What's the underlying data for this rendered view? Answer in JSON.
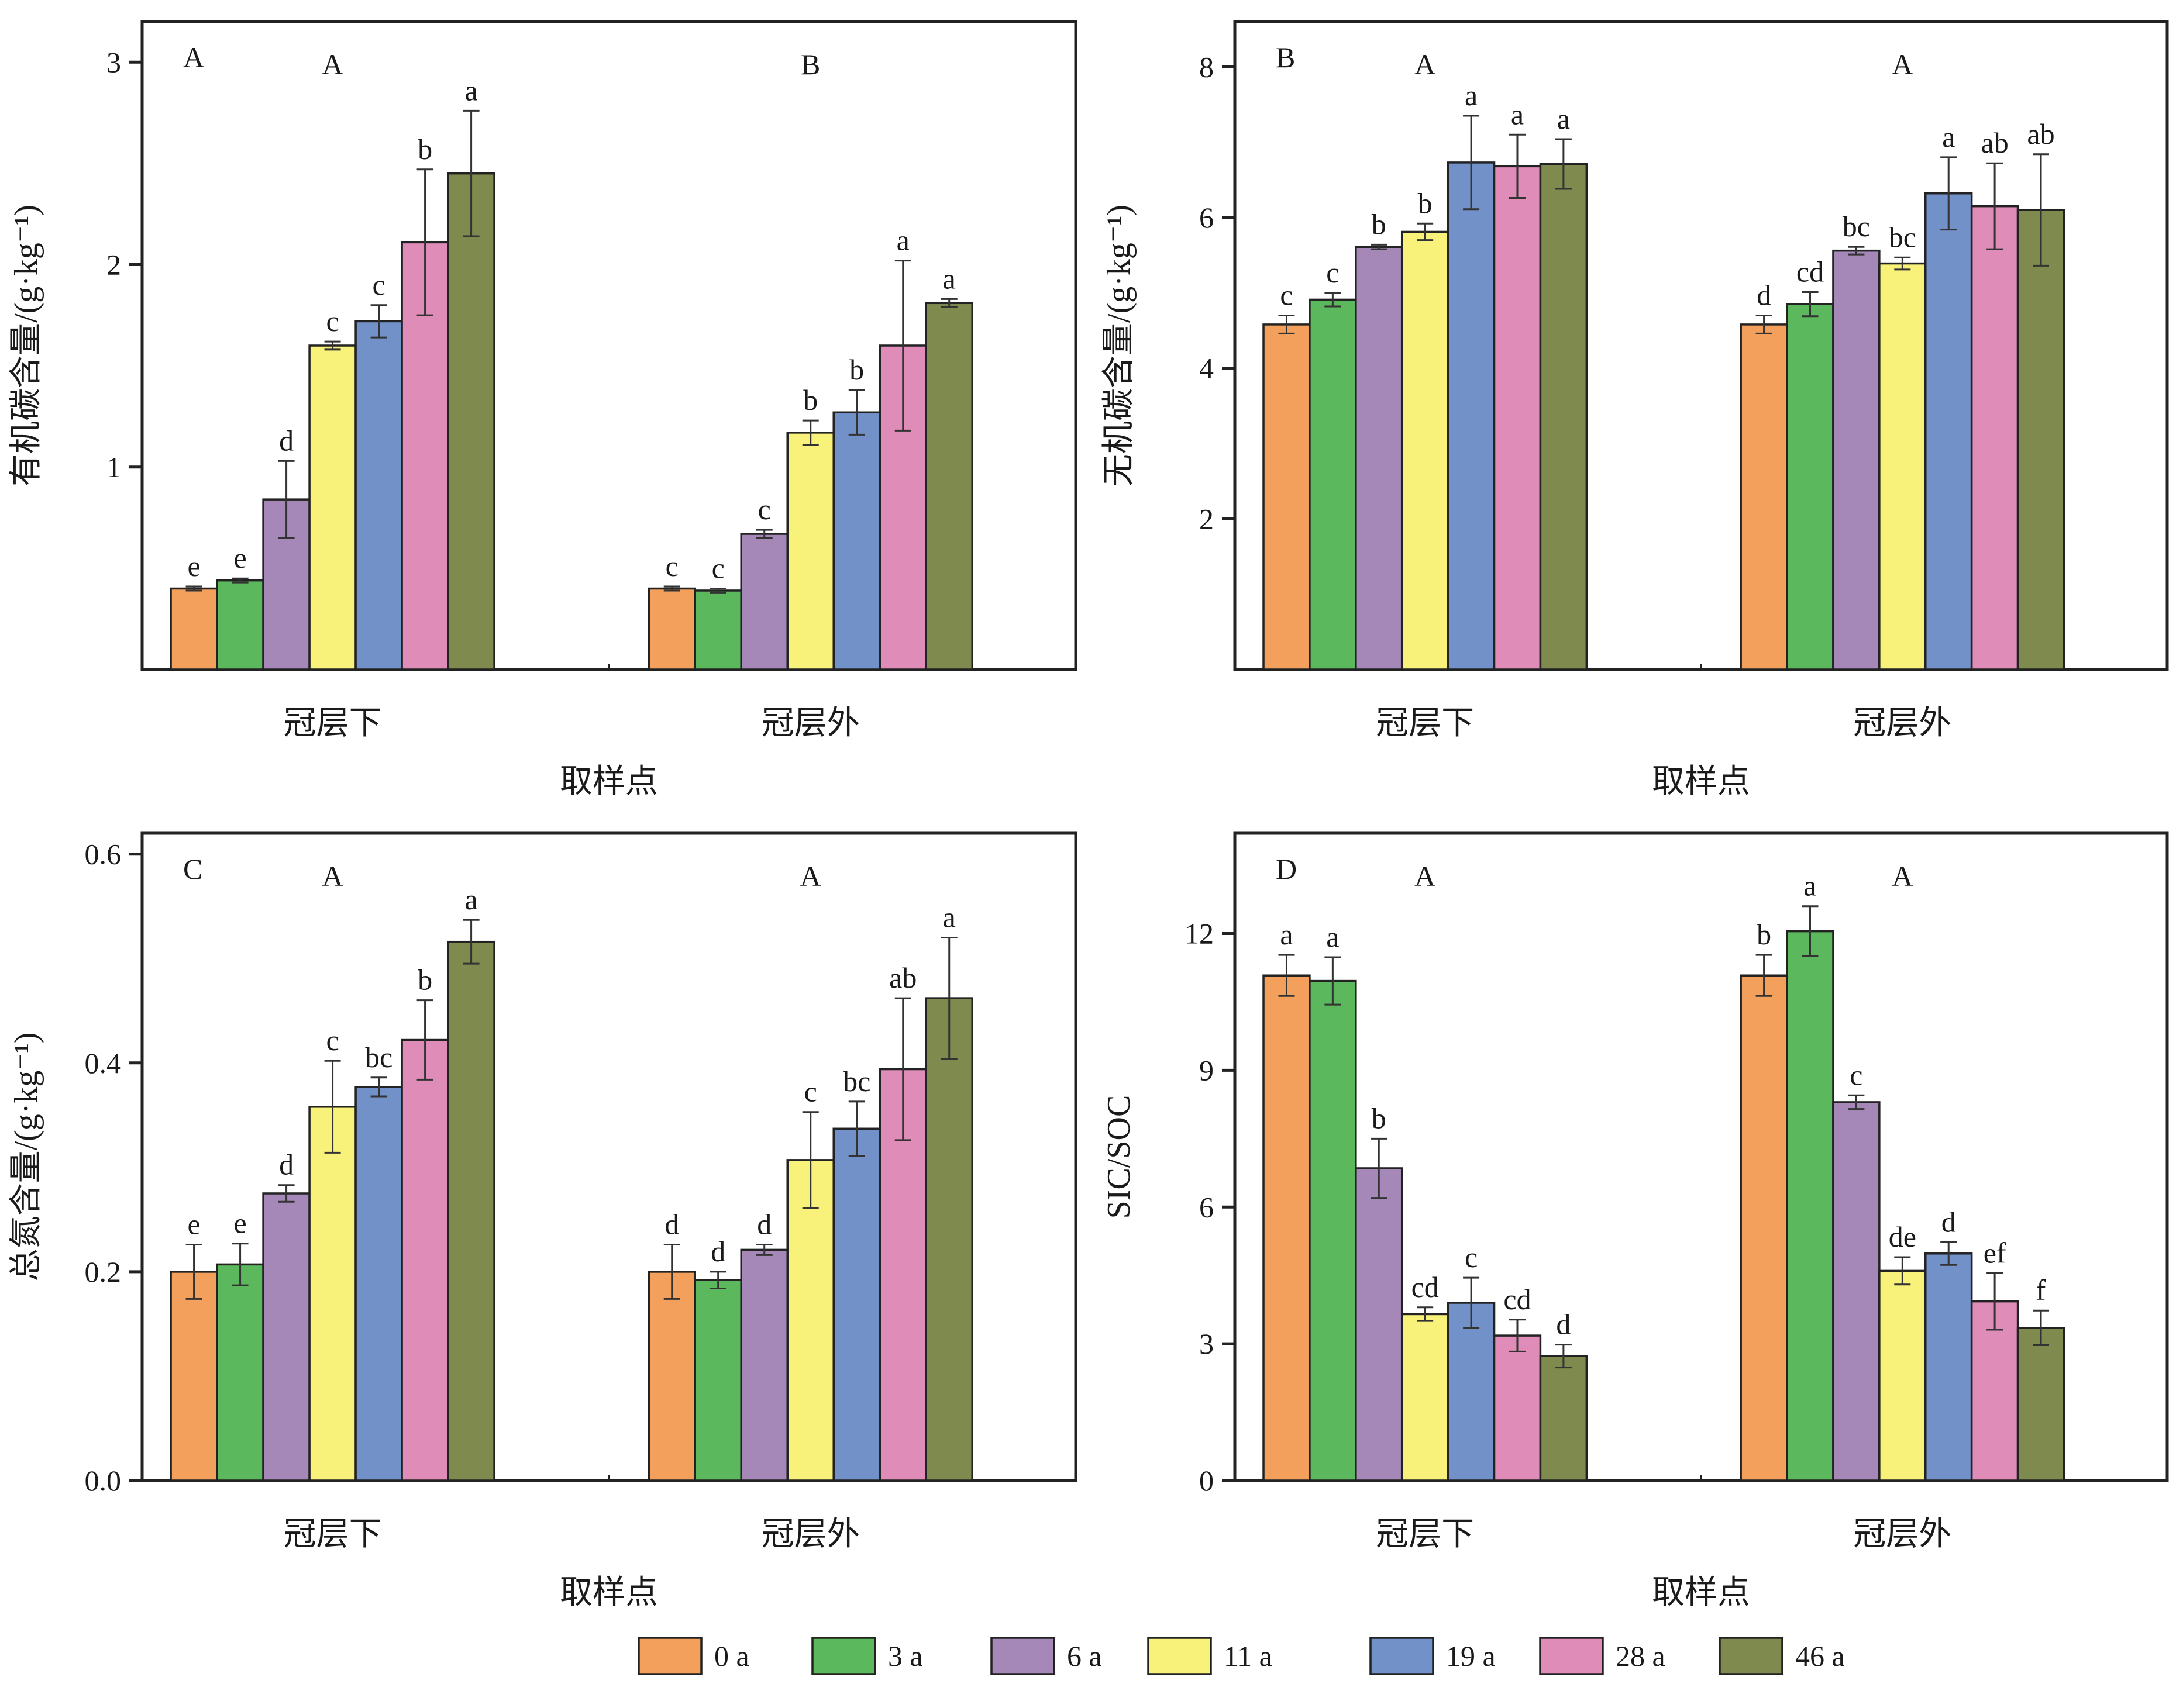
{
  "chart_data": [
    {
      "type": "bar",
      "panel": "A",
      "categories": [
        "冠层下",
        "冠层外"
      ],
      "group_letters": [
        "A",
        "B"
      ],
      "xlabel": "取样点",
      "ylabel": "有机碳含量/(g·kg⁻¹)",
      "ylim": [
        0,
        3.2
      ],
      "yticks": [
        1,
        2,
        3
      ],
      "series": [
        {
          "name": "0 a",
          "values": [
            0.4,
            0.4
          ],
          "errors": [
            0.01,
            0.01
          ],
          "letters": [
            "e",
            "c"
          ]
        },
        {
          "name": "3 a",
          "values": [
            0.44,
            0.39
          ],
          "errors": [
            0.01,
            0.01
          ],
          "letters": [
            "e",
            "c"
          ]
        },
        {
          "name": "6 a",
          "values": [
            0.84,
            0.67
          ],
          "errors": [
            0.19,
            0.02
          ],
          "letters": [
            "d",
            "c"
          ]
        },
        {
          "name": "11 a",
          "values": [
            1.6,
            1.17
          ],
          "errors": [
            0.02,
            0.06
          ],
          "letters": [
            "c",
            "b"
          ]
        },
        {
          "name": "19 a",
          "values": [
            1.72,
            1.27
          ],
          "errors": [
            0.08,
            0.11
          ],
          "letters": [
            "c",
            "b"
          ]
        },
        {
          "name": "28 a",
          "values": [
            2.11,
            1.6
          ],
          "errors": [
            0.36,
            0.42
          ],
          "letters": [
            "b",
            "a"
          ]
        },
        {
          "name": "46 a",
          "values": [
            2.45,
            1.81
          ],
          "errors": [
            0.31,
            0.02
          ],
          "letters": [
            "a",
            "a"
          ]
        }
      ]
    },
    {
      "type": "bar",
      "panel": "B",
      "categories": [
        "冠层下",
        "冠层外"
      ],
      "group_letters": [
        "A",
        "A"
      ],
      "xlabel": "取样点",
      "ylabel": "无机碳含量/(g·kg⁻¹)",
      "ylim": [
        0,
        8.6
      ],
      "yticks": [
        2,
        4,
        6,
        8
      ],
      "series": [
        {
          "name": "0 a",
          "values": [
            4.58,
            4.58
          ],
          "errors": [
            0.12,
            0.12
          ],
          "letters": [
            "c",
            "d"
          ]
        },
        {
          "name": "3 a",
          "values": [
            4.91,
            4.85
          ],
          "errors": [
            0.09,
            0.16
          ],
          "letters": [
            "c",
            "cd"
          ]
        },
        {
          "name": "6 a",
          "values": [
            5.61,
            5.56
          ],
          "errors": [
            0.03,
            0.05
          ],
          "letters": [
            "b",
            "bc"
          ]
        },
        {
          "name": "11 a",
          "values": [
            5.81,
            5.39
          ],
          "errors": [
            0.11,
            0.08
          ],
          "letters": [
            "b",
            "bc"
          ]
        },
        {
          "name": "19 a",
          "values": [
            6.73,
            6.32
          ],
          "errors": [
            0.62,
            0.48
          ],
          "letters": [
            "a",
            "a"
          ]
        },
        {
          "name": "28 a",
          "values": [
            6.68,
            6.15
          ],
          "errors": [
            0.42,
            0.57
          ],
          "letters": [
            "a",
            "ab"
          ]
        },
        {
          "name": "46 a",
          "values": [
            6.71,
            6.1
          ],
          "errors": [
            0.33,
            0.74
          ],
          "letters": [
            "a",
            "ab"
          ]
        }
      ]
    },
    {
      "type": "bar",
      "panel": "C",
      "categories": [
        "冠层下",
        "冠层外"
      ],
      "group_letters": [
        "A",
        "A"
      ],
      "xlabel": "取样点",
      "ylabel": "总氮含量/(g·kg⁻¹)",
      "ylim": [
        0,
        0.62
      ],
      "yticks": [
        0.0,
        0.2,
        0.4,
        0.6
      ],
      "ytick_labels": [
        "0.0",
        "0.2",
        "0.4",
        "0.6"
      ],
      "series": [
        {
          "name": "0 a",
          "values": [
            0.2,
            0.2
          ],
          "errors": [
            0.026,
            0.026
          ],
          "letters": [
            "e",
            "d"
          ]
        },
        {
          "name": "3 a",
          "values": [
            0.207,
            0.192
          ],
          "errors": [
            0.02,
            0.008
          ],
          "letters": [
            "e",
            "d"
          ]
        },
        {
          "name": "6 a",
          "values": [
            0.275,
            0.221
          ],
          "errors": [
            0.008,
            0.005
          ],
          "letters": [
            "d",
            "d"
          ]
        },
        {
          "name": "11 a",
          "values": [
            0.358,
            0.307
          ],
          "errors": [
            0.044,
            0.046
          ],
          "letters": [
            "c",
            "c"
          ]
        },
        {
          "name": "19 a",
          "values": [
            0.377,
            0.337
          ],
          "errors": [
            0.009,
            0.026
          ],
          "letters": [
            "bc",
            "bc"
          ]
        },
        {
          "name": "28 a",
          "values": [
            0.422,
            0.394
          ],
          "errors": [
            0.038,
            0.068
          ],
          "letters": [
            "b",
            "ab"
          ]
        },
        {
          "name": "46 a",
          "values": [
            0.516,
            0.462
          ],
          "errors": [
            0.021,
            0.058
          ],
          "letters": [
            "a",
            "a"
          ]
        }
      ]
    },
    {
      "type": "bar",
      "panel": "D",
      "categories": [
        "冠层下",
        "冠层外"
      ],
      "group_letters": [
        "A",
        "A"
      ],
      "xlabel": "取样点",
      "ylabel": "SIC/SOC",
      "ylim": [
        0,
        14.2
      ],
      "yticks": [
        0,
        3,
        6,
        9,
        12
      ],
      "series": [
        {
          "name": "0 a",
          "values": [
            11.08,
            11.08
          ],
          "errors": [
            0.45,
            0.45
          ],
          "letters": [
            "a",
            "b"
          ]
        },
        {
          "name": "3 a",
          "values": [
            10.96,
            12.05
          ],
          "errors": [
            0.52,
            0.55
          ],
          "letters": [
            "a",
            "a"
          ]
        },
        {
          "name": "6 a",
          "values": [
            6.85,
            8.3
          ],
          "errors": [
            0.65,
            0.15
          ],
          "letters": [
            "b",
            "c"
          ]
        },
        {
          "name": "11 a",
          "values": [
            3.65,
            4.6
          ],
          "errors": [
            0.15,
            0.3
          ],
          "letters": [
            "cd",
            "de"
          ]
        },
        {
          "name": "19 a",
          "values": [
            3.9,
            4.98
          ],
          "errors": [
            0.55,
            0.25
          ],
          "letters": [
            "c",
            "d"
          ]
        },
        {
          "name": "28 a",
          "values": [
            3.18,
            3.93
          ],
          "errors": [
            0.35,
            0.62
          ],
          "letters": [
            "cd",
            "ef"
          ]
        },
        {
          "name": "46 a",
          "values": [
            2.73,
            3.35
          ],
          "errors": [
            0.25,
            0.38
          ],
          "letters": [
            "d",
            "f"
          ]
        }
      ]
    }
  ],
  "legend": {
    "position": "bottom-center",
    "items": [
      {
        "label": "0 a",
        "color": "#F4A05D"
      },
      {
        "label": "3 a",
        "color": "#5CB85C"
      },
      {
        "label": "6 a",
        "color": "#A587B8"
      },
      {
        "label": "11 a",
        "color": "#F8F27A"
      },
      {
        "label": "19 a",
        "color": "#7291C8"
      },
      {
        "label": "28 a",
        "color": "#E08CB8"
      },
      {
        "label": "46 a",
        "color": "#7E8A4E"
      }
    ]
  }
}
